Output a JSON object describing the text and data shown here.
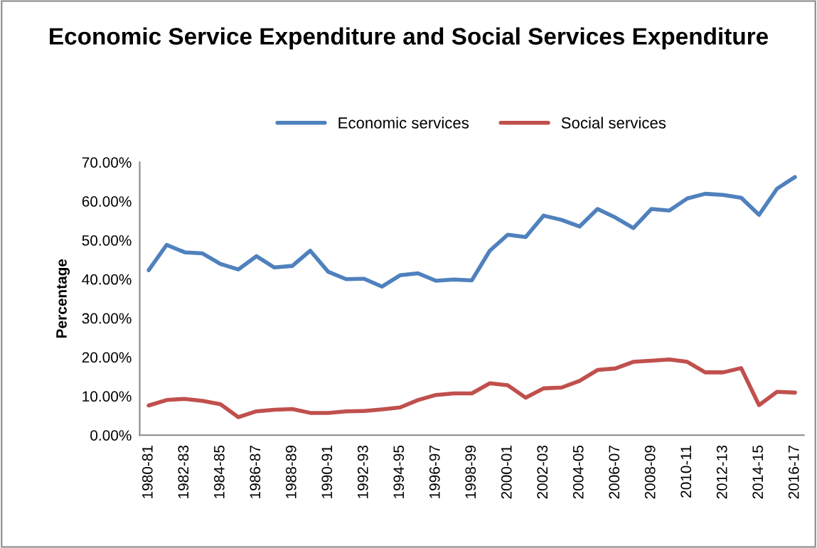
{
  "chart_data": {
    "type": "line",
    "title": "Economic Service Expenditure and Social Services Expenditure",
    "ylabel": "Percentage",
    "categories": [
      "1980-81",
      null,
      "1982-83",
      null,
      "1984-85",
      null,
      "1986-87",
      null,
      "1988-89",
      null,
      "1990-91",
      null,
      "1992-93",
      null,
      "1994-95",
      null,
      "1996-97",
      null,
      "1998-99",
      null,
      "2000-01",
      null,
      "2002-03",
      null,
      "2004-05",
      null,
      "2006-07",
      null,
      "2008-09",
      null,
      "2010-11",
      null,
      "2012-13",
      null,
      "2014-15",
      null,
      "2016-17"
    ],
    "series": [
      {
        "name": "Economic services",
        "color": "#4f81bd",
        "values": [
          42.3,
          48.8,
          46.9,
          46.6,
          43.9,
          42.5,
          45.9,
          43.0,
          43.4,
          47.3,
          41.9,
          40.0,
          40.1,
          38.1,
          41.0,
          41.5,
          39.6,
          39.9,
          39.7,
          47.3,
          51.4,
          50.8,
          56.3,
          55.2,
          53.5,
          58.0,
          55.8,
          53.1,
          58.0,
          57.6,
          60.7,
          61.9,
          61.6,
          60.9,
          56.5,
          63.2,
          66.2
        ]
      },
      {
        "name": "Social services",
        "color": "#c0504d",
        "values": [
          7.6,
          9.0,
          9.3,
          8.8,
          7.9,
          4.6,
          6.1,
          6.5,
          6.7,
          5.7,
          5.7,
          6.1,
          6.2,
          6.6,
          7.1,
          9.0,
          10.3,
          10.7,
          10.7,
          13.3,
          12.8,
          9.6,
          12.0,
          12.2,
          13.9,
          16.7,
          17.1,
          18.8,
          19.1,
          19.4,
          18.8,
          16.1,
          16.1,
          17.2,
          7.7,
          11.1,
          10.9
        ]
      }
    ],
    "ylim": [
      0,
      70
    ],
    "yticks": [
      {
        "value": 0,
        "label": "0.00%"
      },
      {
        "value": 10,
        "label": "10.00%"
      },
      {
        "value": 20,
        "label": "20.00%"
      },
      {
        "value": 30,
        "label": "30.00%"
      },
      {
        "value": 40,
        "label": "40.00%"
      },
      {
        "value": 50,
        "label": "50.00%"
      },
      {
        "value": 60,
        "label": "60.00%"
      },
      {
        "value": 70,
        "label": "70.00%"
      }
    ],
    "grid": false,
    "legend": "top",
    "marker": "none",
    "line_style": "solid"
  }
}
